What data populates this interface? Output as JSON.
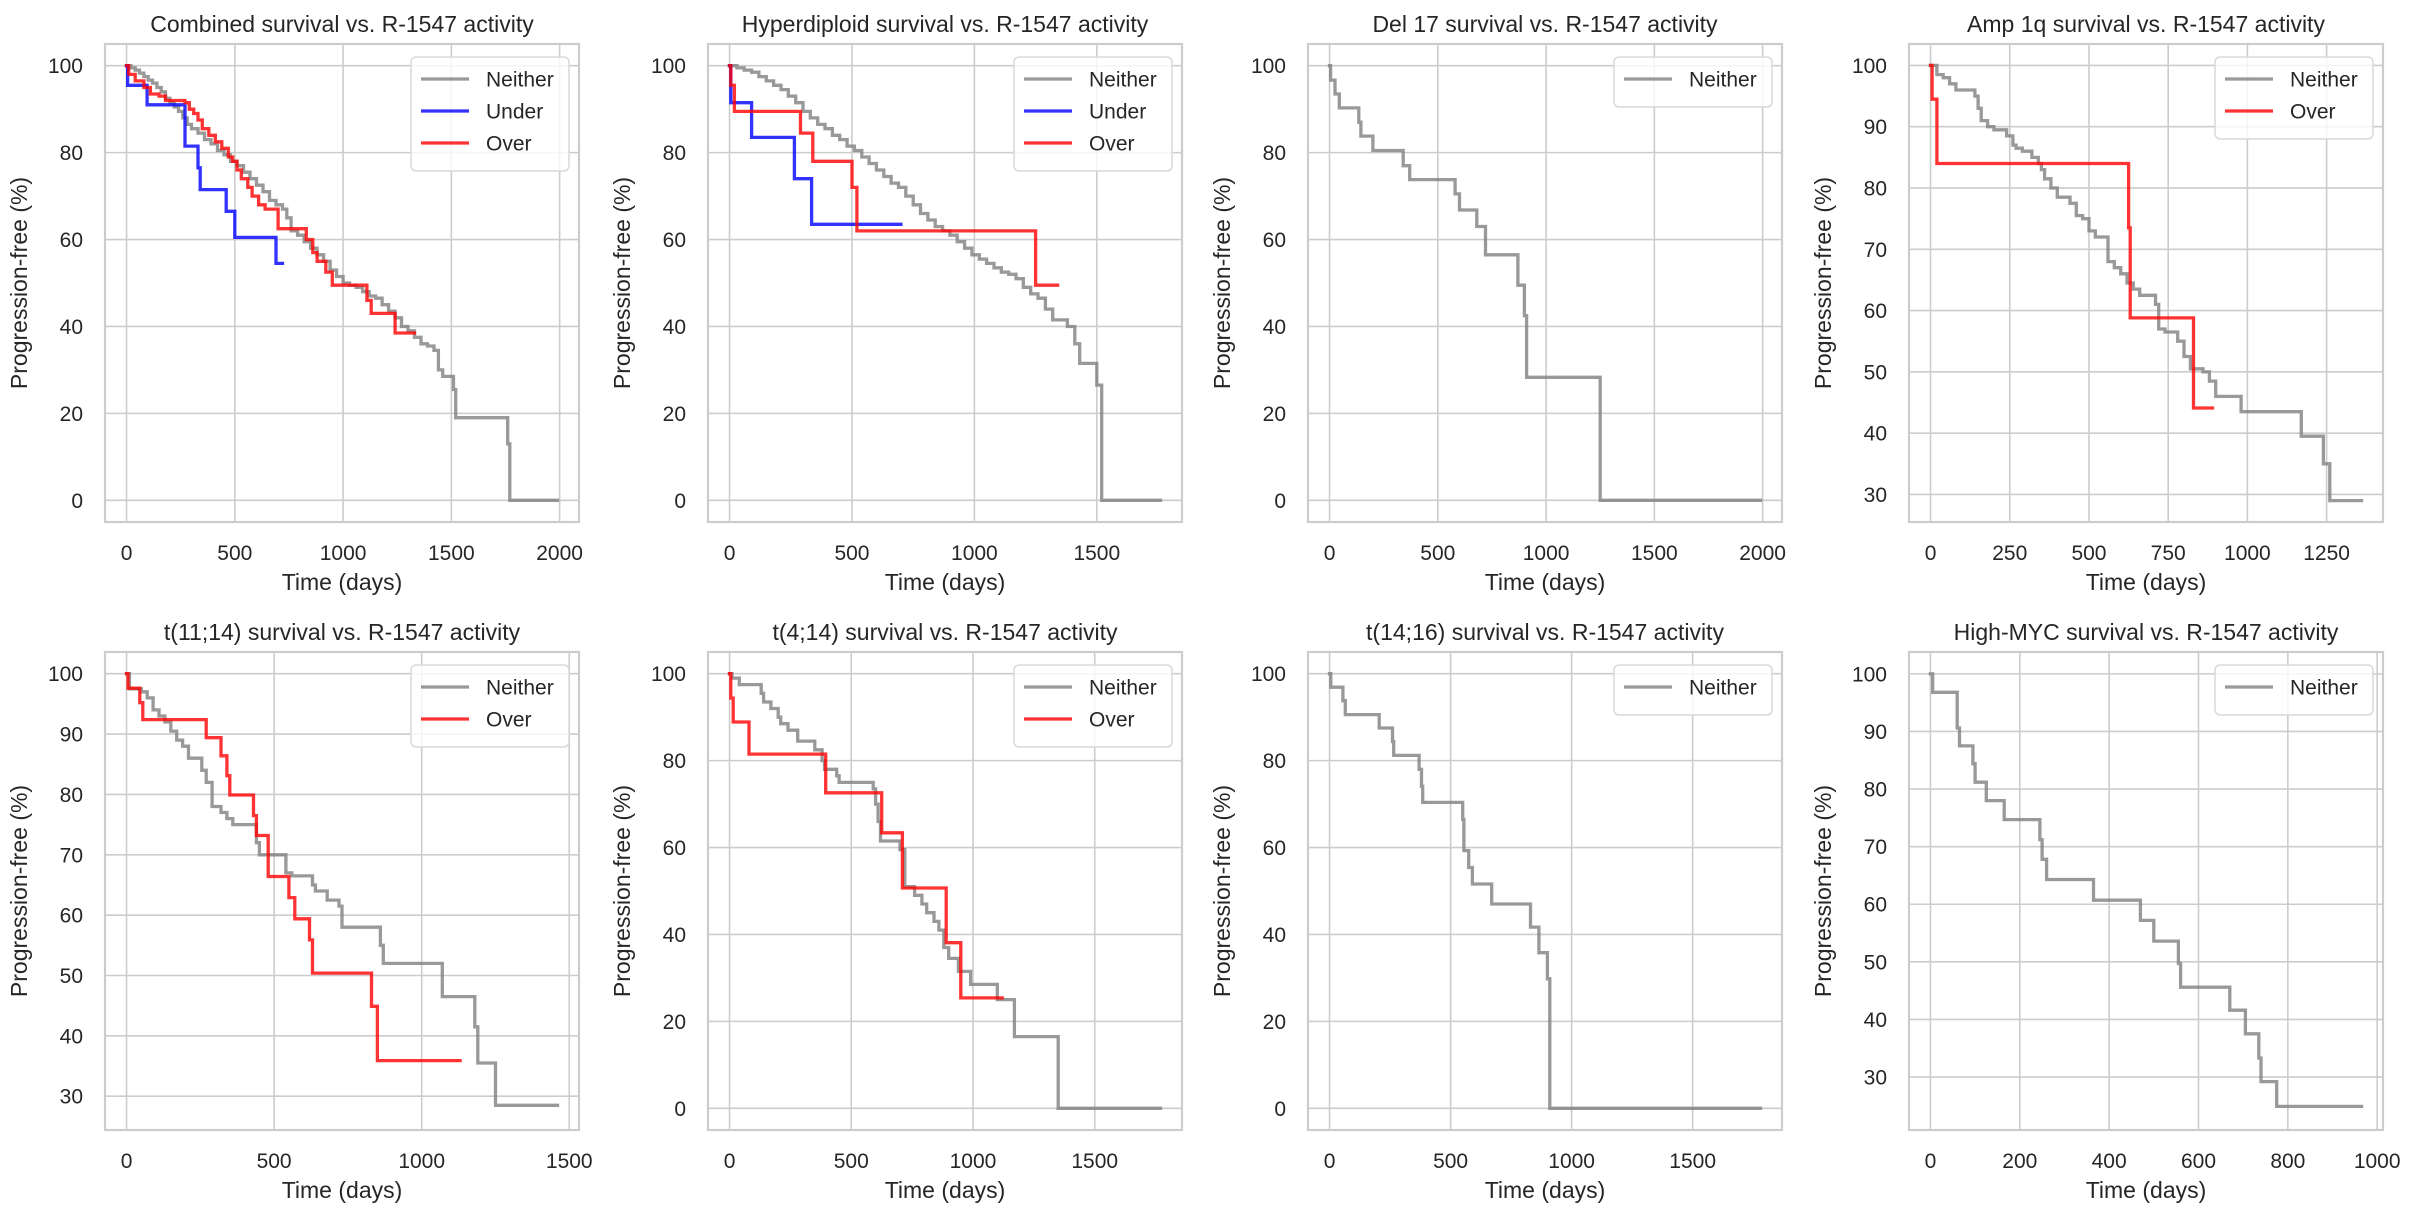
{
  "figure": {
    "colors": {
      "Neither": "#808080",
      "Under": "#0000ff",
      "Over": "#ff0000"
    }
  },
  "chart_data": [
    {
      "type": "line",
      "title": "Combined survival vs. R-1547 activity",
      "xlabel": "Time (days)",
      "ylabel": "Progression-free (%)",
      "xlim": [
        -99.5,
        2089.5
      ],
      "ylim": [
        -5,
        105
      ],
      "xticks": [
        0,
        500,
        1000,
        1500,
        2000
      ],
      "yticks": [
        0,
        20,
        40,
        60,
        80,
        100
      ],
      "grid": true,
      "legend": "top-right",
      "series": [
        {
          "name": "Neither",
          "step": true,
          "x": [
            0,
            20,
            40,
            60,
            80,
            100,
            120,
            140,
            160,
            180,
            200,
            220,
            240,
            260,
            280,
            300,
            330,
            360,
            390,
            420,
            450,
            480,
            510,
            540,
            570,
            600,
            630,
            660,
            690,
            720,
            740,
            760,
            790,
            820,
            850,
            880,
            910,
            940,
            970,
            1000,
            1030,
            1060,
            1090,
            1120,
            1150,
            1180,
            1210,
            1240,
            1270,
            1300,
            1330,
            1360,
            1390,
            1420,
            1440,
            1460,
            1490,
            1510,
            1520,
            1760,
            1770,
            1990
          ],
          "y": [
            100,
            99.5,
            99,
            98.3,
            97.5,
            96.7,
            96,
            95,
            94,
            92.5,
            91.5,
            90.5,
            89.5,
            88,
            86.5,
            85.5,
            84.5,
            83,
            82,
            80.5,
            79.5,
            78,
            77,
            75.5,
            74,
            72.5,
            71,
            69,
            68,
            67,
            65,
            62,
            61,
            59.5,
            58,
            56.5,
            55,
            53,
            51.5,
            50,
            49.5,
            49,
            48,
            47,
            46.5,
            45,
            43.5,
            42,
            40,
            39,
            37.5,
            36,
            35.5,
            34.5,
            30,
            28.5,
            28.5,
            25.5,
            19,
            13,
            0,
            0
          ]
        },
        {
          "name": "Under",
          "step": true,
          "x": [
            0,
            5,
            95,
            265,
            270,
            330,
            340,
            460,
            500,
            690,
            720
          ],
          "y": [
            100,
            95.5,
            91,
            91,
            81.5,
            76.5,
            71.5,
            66.5,
            60.5,
            54.5,
            54.5
          ]
        },
        {
          "name": "Over",
          "step": true,
          "x": [
            0,
            10,
            40,
            80,
            110,
            150,
            180,
            270,
            290,
            310,
            330,
            350,
            380,
            410,
            440,
            470,
            490,
            510,
            530,
            560,
            580,
            610,
            640,
            700,
            830,
            860,
            880,
            920,
            950,
            1070,
            1110,
            1130,
            1240,
            1330
          ],
          "y": [
            100,
            98,
            96.5,
            95,
            93.5,
            93,
            92,
            91.5,
            90,
            89,
            87.5,
            85.5,
            84,
            82.5,
            81,
            79,
            78,
            76,
            74,
            72,
            70,
            68,
            67,
            62.5,
            60,
            57,
            55,
            52.5,
            49.5,
            49.5,
            46,
            43,
            38.5,
            38.5
          ]
        }
      ]
    },
    {
      "type": "line",
      "title": "Hyperdiploid survival vs. R-1547 activity",
      "xlabel": "Time (days)",
      "ylabel": "Progression-free (%)",
      "xlim": [
        -88,
        1848
      ],
      "ylim": [
        -5,
        105
      ],
      "xticks": [
        0,
        500,
        1000,
        1500
      ],
      "yticks": [
        0,
        20,
        40,
        60,
        80,
        100
      ],
      "grid": true,
      "legend": "top-right",
      "series": [
        {
          "name": "Neither",
          "step": true,
          "x": [
            0,
            30,
            60,
            90,
            120,
            150,
            180,
            210,
            240,
            270,
            300,
            330,
            360,
            390,
            420,
            450,
            480,
            510,
            540,
            570,
            600,
            630,
            660,
            690,
            720,
            750,
            780,
            810,
            840,
            870,
            900,
            930,
            960,
            990,
            1020,
            1050,
            1080,
            1110,
            1140,
            1170,
            1200,
            1230,
            1260,
            1290,
            1320,
            1350,
            1380,
            1410,
            1430,
            1440,
            1500,
            1510,
            1520,
            1760
          ],
          "y": [
            100,
            99.5,
            99,
            98.5,
            97.5,
            96.5,
            95.5,
            94.5,
            93,
            91.5,
            89.5,
            88,
            86.5,
            85.5,
            84,
            83,
            81.5,
            80.5,
            79,
            77.5,
            76,
            74.5,
            73,
            72,
            70,
            68,
            66,
            64.5,
            63,
            62,
            61,
            59.5,
            58,
            56.5,
            55.5,
            54.5,
            53.5,
            52.5,
            52,
            51,
            49,
            47.5,
            46.5,
            44,
            41.5,
            41.5,
            40,
            36,
            31.5,
            31.5,
            26.5,
            26.5,
            0,
            0
          ]
        },
        {
          "name": "Under",
          "step": true,
          "x": [
            0,
            5,
            90,
            265,
            335,
            700
          ],
          "y": [
            100,
            91.5,
            83.5,
            74,
            63.5,
            63.5
          ]
        },
        {
          "name": "Over",
          "step": true,
          "x": [
            0,
            5,
            20,
            290,
            340,
            500,
            520,
            1250,
            1340
          ],
          "y": [
            100,
            95.5,
            89.5,
            84.5,
            78,
            72,
            62,
            49.5,
            49.5
          ]
        }
      ]
    },
    {
      "type": "line",
      "title": "Del 17 survival vs. R-1547 activity",
      "xlabel": "Time (days)",
      "ylabel": "Progression-free (%)",
      "xlim": [
        -99.5,
        2089.5
      ],
      "ylim": [
        -5,
        105
      ],
      "xticks": [
        0,
        500,
        1000,
        1500,
        2000
      ],
      "yticks": [
        0,
        20,
        40,
        60,
        80,
        100
      ],
      "grid": true,
      "legend": "top-right",
      "series": [
        {
          "name": "Neither",
          "step": true,
          "x": [
            0,
            5,
            25,
            45,
            135,
            145,
            200,
            340,
            370,
            580,
            600,
            680,
            720,
            870,
            900,
            910,
            1250,
            1990
          ],
          "y": [
            100,
            96.7,
            93.5,
            90.3,
            87,
            83.8,
            80.5,
            77,
            73.8,
            70.5,
            66.8,
            63,
            56.5,
            49.5,
            42.5,
            28.3,
            0,
            0
          ]
        }
      ]
    },
    {
      "type": "line",
      "title": "Amp 1q survival vs. R-1547 activity",
      "xlabel": "Time (days)",
      "ylabel": "Progression-free (%)",
      "xlim": [
        -68,
        1428
      ],
      "ylim": [
        25.5,
        103.5
      ],
      "xticks": [
        0,
        250,
        500,
        750,
        1000,
        1250
      ],
      "yticks": [
        30,
        40,
        50,
        60,
        70,
        80,
        90,
        100
      ],
      "grid": true,
      "legend": "top-right",
      "series": [
        {
          "name": "Neither",
          "step": true,
          "x": [
            0,
            20,
            40,
            60,
            80,
            140,
            150,
            160,
            180,
            200,
            240,
            260,
            270,
            290,
            320,
            340,
            350,
            360,
            380,
            400,
            440,
            460,
            480,
            500,
            520,
            560,
            580,
            600,
            620,
            640,
            660,
            710,
            720,
            740,
            780,
            800,
            820,
            860,
            880,
            900,
            980,
            1170,
            1240,
            1260,
            1360
          ],
          "y": [
            100,
            98.5,
            98,
            97,
            96,
            95,
            93,
            91,
            90,
            89.5,
            88.5,
            87,
            86.5,
            86,
            85,
            84,
            83,
            81.5,
            80,
            78.5,
            77.5,
            75.5,
            75,
            73,
            72,
            68,
            67,
            66,
            64.5,
            63.5,
            62.5,
            61,
            57,
            56.5,
            55,
            52.5,
            50.5,
            50,
            48.5,
            46,
            43.5,
            39.5,
            35,
            29,
            29
          ]
        },
        {
          "name": "Over",
          "step": true,
          "x": [
            0,
            5,
            20,
            625,
            630,
            830,
            890
          ],
          "y": [
            100,
            94.5,
            84,
            73.5,
            58.8,
            44.1,
            44.1
          ]
        }
      ]
    },
    {
      "type": "line",
      "title": "t(11;14) survival vs. R-1547 activity",
      "xlabel": "Time (days)",
      "ylabel": "Progression-free (%)",
      "xlim": [
        -73,
        1533
      ],
      "ylim": [
        24.4,
        103.6
      ],
      "xticks": [
        0,
        500,
        1000,
        1500
      ],
      "yticks": [
        30,
        40,
        50,
        60,
        70,
        80,
        90,
        100
      ],
      "grid": true,
      "legend": "top-right",
      "series": [
        {
          "name": "Neither",
          "step": true,
          "x": [
            0,
            10,
            50,
            70,
            90,
            110,
            130,
            150,
            170,
            190,
            210,
            250,
            255,
            270,
            290,
            320,
            340,
            360,
            380,
            440,
            450,
            480,
            530,
            540,
            560,
            620,
            630,
            640,
            680,
            720,
            730,
            850,
            860,
            870,
            1070,
            1180,
            1190,
            1250,
            1460
          ],
          "y": [
            100,
            97.5,
            97,
            96,
            94,
            93,
            92,
            90.5,
            89,
            88,
            86,
            86,
            84,
            82,
            78,
            77,
            76,
            75,
            75,
            72,
            70,
            70,
            70,
            67,
            66.5,
            66.5,
            65,
            64,
            62.5,
            61.5,
            58,
            58,
            55,
            52,
            46.5,
            41.5,
            35.5,
            28.5,
            28.5
          ]
        },
        {
          "name": "Over",
          "step": true,
          "x": [
            0,
            5,
            45,
            55,
            270,
            320,
            340,
            350,
            430,
            440,
            480,
            550,
            570,
            620,
            630,
            830,
            840,
            850,
            1130
          ],
          "y": [
            100,
            97.6,
            95.2,
            92.4,
            89.4,
            86.4,
            83.1,
            79.9,
            76.5,
            73.2,
            66.4,
            62.9,
            59.4,
            55.9,
            50.4,
            44.9,
            44.9,
            35.9,
            35.9
          ]
        }
      ]
    },
    {
      "type": "line",
      "title": "t(4;14) survival vs. R-1547 activity",
      "xlabel": "Time (days)",
      "ylabel": "Progression-free (%)",
      "xlim": [
        -88.5,
        1858.5
      ],
      "ylim": [
        -5,
        105
      ],
      "xticks": [
        0,
        500,
        1000,
        1500
      ],
      "yticks": [
        0,
        20,
        40,
        60,
        80,
        100
      ],
      "grid": true,
      "legend": "top-right",
      "series": [
        {
          "name": "Neither",
          "step": true,
          "x": [
            0,
            10,
            40,
            130,
            140,
            170,
            200,
            210,
            240,
            280,
            350,
            380,
            390,
            440,
            450,
            590,
            600,
            610,
            620,
            650,
            700,
            720,
            760,
            790,
            810,
            840,
            860,
            880,
            900,
            940,
            990,
            1100,
            1170,
            1180,
            1350,
            1770
          ],
          "y": [
            100,
            99,
            97.5,
            95.5,
            93.5,
            92,
            90,
            88.5,
            87,
            84.5,
            82.5,
            80,
            78,
            76.5,
            75,
            73.5,
            70,
            66,
            61.5,
            61.5,
            59.5,
            51,
            49,
            47,
            45,
            43,
            41,
            37,
            34.5,
            31.5,
            28.5,
            25,
            16.5,
            16.5,
            0,
            0
          ]
        },
        {
          "name": "Over",
          "step": true,
          "x": [
            0,
            5,
            15,
            80,
            395,
            625,
            710,
            890,
            950,
            1120
          ],
          "y": [
            100,
            94.4,
            88.9,
            81.5,
            72.6,
            63.4,
            50.7,
            38.1,
            25.4,
            25.4
          ]
        }
      ]
    },
    {
      "type": "line",
      "title": "t(14;16) survival vs. R-1547 activity",
      "xlabel": "Time (days)",
      "ylabel": "Progression-free (%)",
      "xlim": [
        -89,
        1869
      ],
      "ylim": [
        -5,
        105
      ],
      "xticks": [
        0,
        500,
        1000,
        1500
      ],
      "yticks": [
        0,
        20,
        40,
        60,
        80,
        100
      ],
      "grid": true,
      "legend": "top-right",
      "series": [
        {
          "name": "Neither",
          "step": true,
          "x": [
            0,
            5,
            55,
            65,
            205,
            260,
            265,
            370,
            380,
            385,
            550,
            555,
            575,
            590,
            670,
            830,
            865,
            900,
            910,
            1780
          ],
          "y": [
            100,
            96.9,
            93.8,
            90.6,
            87.5,
            84.4,
            81.2,
            78,
            74.1,
            70.4,
            66.5,
            59.3,
            55.4,
            51.6,
            47,
            41.7,
            35.8,
            29.8,
            0,
            0
          ]
        }
      ]
    },
    {
      "type": "line",
      "title": "High-MYC survival vs. R-1547 activity",
      "xlabel": "Time (days)",
      "ylabel": "Progression-free (%)",
      "xlim": [
        -48,
        1013
      ],
      "ylim": [
        20.8,
        103.8
      ],
      "xticks": [
        0,
        200,
        400,
        600,
        800,
        1000
      ],
      "yticks": [
        30,
        40,
        50,
        60,
        70,
        80,
        90,
        100
      ],
      "grid": true,
      "legend": "top-right",
      "series": [
        {
          "name": "Neither",
          "step": true,
          "x": [
            0,
            5,
            60,
            65,
            95,
            100,
            125,
            165,
            245,
            250,
            260,
            365,
            470,
            500,
            555,
            560,
            670,
            705,
            735,
            740,
            775,
            965
          ],
          "y": [
            100,
            96.8,
            90.6,
            87.5,
            84.4,
            81.2,
            78,
            74.7,
            71.2,
            67.8,
            64.3,
            60.7,
            57.2,
            53.6,
            49.7,
            45.6,
            41.6,
            37.5,
            33.3,
            29.2,
            24.9,
            24.9
          ]
        }
      ]
    }
  ]
}
